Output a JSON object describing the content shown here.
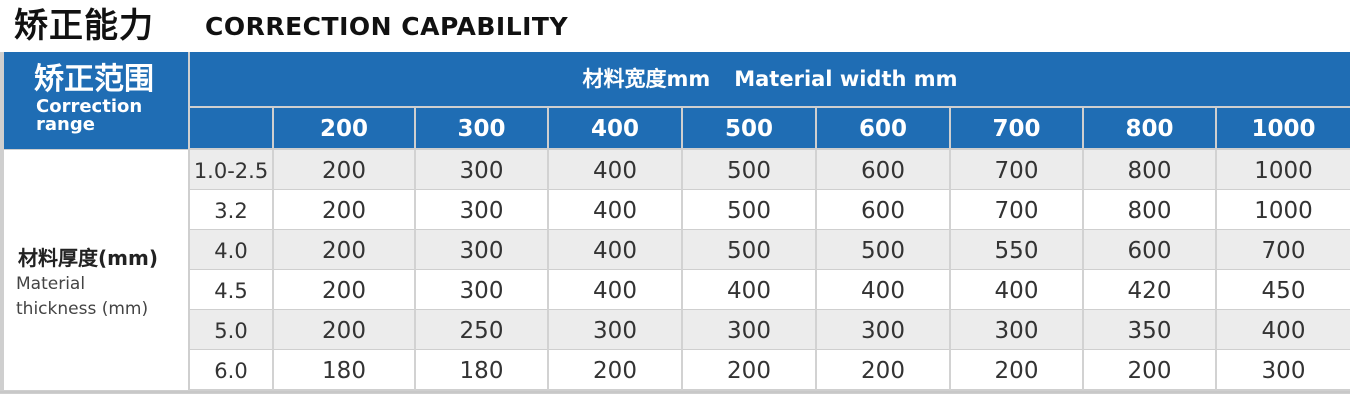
{
  "title": {
    "cn": "矫正能力",
    "en": "CORRECTION CAPABILITY"
  },
  "corner": {
    "cn": "矫正范围",
    "en": "Correction\nrange"
  },
  "width_header": {
    "cn": "材料宽度mm",
    "en": "Material width mm"
  },
  "row_label": {
    "cn": "材料厚度(mm)",
    "en": "Material\nthickness (mm)"
  },
  "widths": [
    "200",
    "300",
    "400",
    "500",
    "600",
    "700",
    "800",
    "1000"
  ],
  "rows": [
    {
      "thickness": "1.0-2.5",
      "values": [
        "200",
        "300",
        "400",
        "500",
        "600",
        "700",
        "800",
        "1000"
      ]
    },
    {
      "thickness": "3.2",
      "values": [
        "200",
        "300",
        "400",
        "500",
        "600",
        "700",
        "800",
        "1000"
      ]
    },
    {
      "thickness": "4.0",
      "values": [
        "200",
        "300",
        "400",
        "500",
        "500",
        "550",
        "600",
        "700"
      ]
    },
    {
      "thickness": "4.5",
      "values": [
        "200",
        "300",
        "400",
        "400",
        "400",
        "400",
        "420",
        "450"
      ]
    },
    {
      "thickness": "5.0",
      "values": [
        "200",
        "250",
        "300",
        "300",
        "300",
        "300",
        "350",
        "400"
      ]
    },
    {
      "thickness": "6.0",
      "values": [
        "180",
        "180",
        "200",
        "200",
        "200",
        "200",
        "200",
        "300"
      ]
    }
  ],
  "colors": {
    "header_blue": "#1f6db4",
    "row_shade": "#ececec",
    "text": "#333333"
  }
}
